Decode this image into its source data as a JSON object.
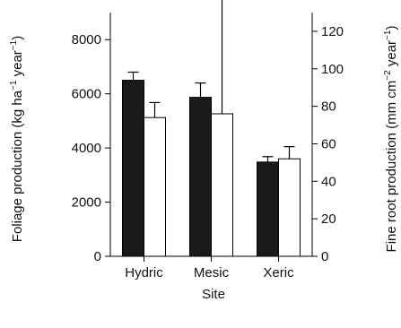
{
  "chart_data": {
    "type": "bar",
    "xlabel": "Site",
    "categories": [
      "Hydric",
      "Mesic",
      "Xeric"
    ],
    "y_left": {
      "label_main": "Foliage production (kg ha",
      "label_sup1": "−1",
      "label_mid": " year",
      "label_sup2": "−1",
      "label_end": ")",
      "ylim": [
        0,
        9000
      ],
      "ticks": [
        0,
        2000,
        4000,
        6000,
        8000
      ]
    },
    "y_right": {
      "label_main": "Fine root production (mm cm",
      "label_sup1": "−2",
      "label_mid": " year",
      "label_sup2": "−1",
      "label_end": ")",
      "ylim": [
        0,
        130
      ],
      "ticks": [
        0,
        20,
        40,
        60,
        80,
        100,
        120
      ]
    },
    "series": [
      {
        "axis": "left",
        "color": "#1a1a1a",
        "values": [
          6500,
          5870,
          3480
        ],
        "errors": [
          300,
          530,
          200
        ]
      },
      {
        "axis": "right",
        "color": "#ffffff",
        "values": [
          74,
          76,
          52
        ],
        "errors": [
          8,
          68,
          6.5
        ]
      }
    ]
  }
}
